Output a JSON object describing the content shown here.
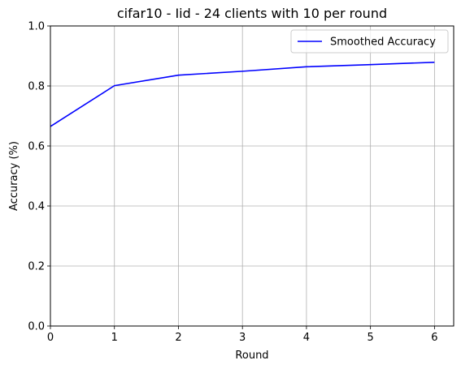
{
  "chart_data": {
    "type": "line",
    "title": "cifar10 - Iid - 24 clients with 10 per round",
    "xlabel": "Round",
    "ylabel": "Accuracy (%)",
    "xlim": [
      0,
      6.3
    ],
    "ylim": [
      0,
      1.0
    ],
    "xticks": [
      0,
      1,
      2,
      3,
      4,
      5,
      6
    ],
    "yticks": [
      0.0,
      0.2,
      0.4,
      0.6,
      0.8,
      1.0
    ],
    "xtick_labels": [
      "0",
      "1",
      "2",
      "3",
      "4",
      "5",
      "6"
    ],
    "ytick_labels": [
      "0.0",
      "0.2",
      "0.4",
      "0.6",
      "0.8",
      "1.0"
    ],
    "grid": true,
    "legend_position": "top-right",
    "series": [
      {
        "name": "Smoothed Accuracy",
        "color": "#0000ff",
        "x": [
          0,
          1,
          2,
          3,
          4,
          5,
          6
        ],
        "y": [
          0.665,
          0.801,
          0.836,
          0.849,
          0.864,
          0.871,
          0.879
        ]
      }
    ]
  }
}
